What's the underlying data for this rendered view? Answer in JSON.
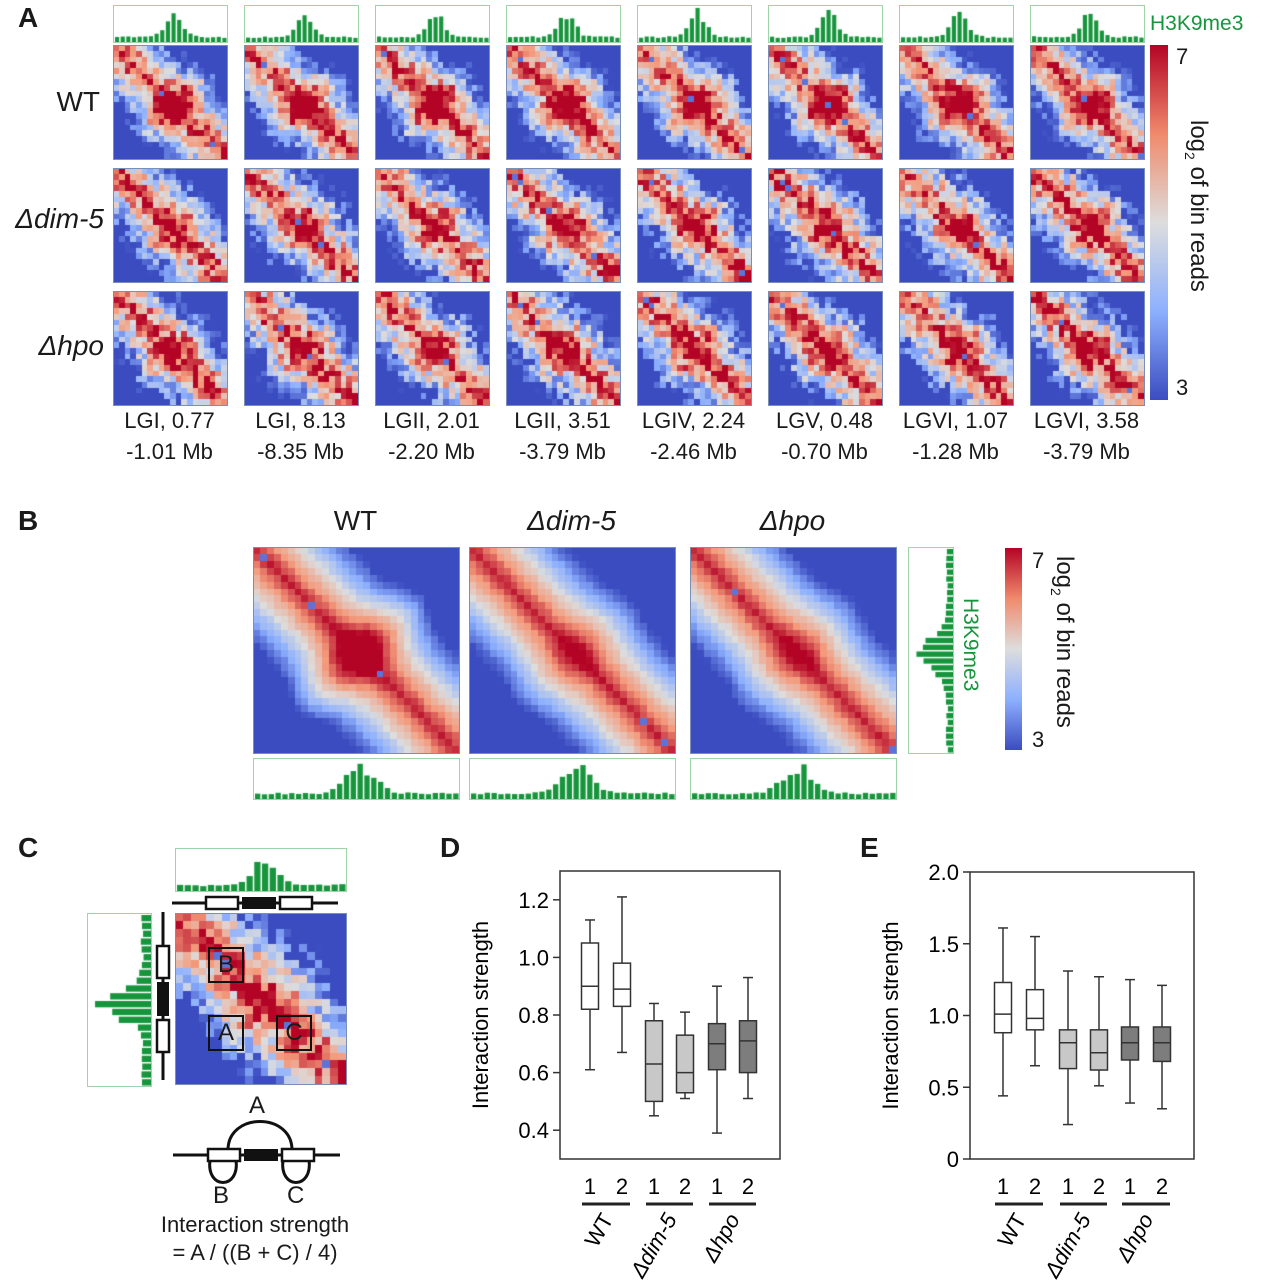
{
  "panel_labels": [
    "A",
    "B",
    "C",
    "D",
    "E"
  ],
  "panelA": {
    "rows": [
      "WT",
      "Δdim-5",
      "Δhpo"
    ],
    "columns": [
      {
        "line1": "LGI, 0.77",
        "line2": "-1.01 Mb"
      },
      {
        "line1": "LGI, 8.13",
        "line2": "-8.35 Mb"
      },
      {
        "line1": "LGII, 2.01",
        "line2": "-2.20 Mb"
      },
      {
        "line1": "LGII, 3.51",
        "line2": "-3.79 Mb"
      },
      {
        "line1": "LGIV, 2.24",
        "line2": "-2.46 Mb"
      },
      {
        "line1": "LGV, 0.48",
        "line2": "-0.70 Mb"
      },
      {
        "line1": "LGVI, 1.07",
        "line2": "-1.28 Mb"
      },
      {
        "line1": "LGVI, 3.58",
        "line2": "-3.79 Mb"
      }
    ],
    "track_label": "H3K9me3",
    "colorbar": {
      "max": "7",
      "min": "3",
      "label_log": "log",
      "label_sub": "2",
      "label_rest": " of bin reads"
    }
  },
  "panelB": {
    "titles": [
      "WT",
      "Δdim-5",
      "Δhpo"
    ],
    "track_label": "H3K9me3",
    "colorbar": {
      "max": "7",
      "min": "3",
      "label_log": "log",
      "label_sub": "2",
      "label_rest": " of bin reads"
    }
  },
  "panelC": {
    "boxes": [
      "B",
      "A",
      "C"
    ],
    "arc_labels": {
      "a": "A",
      "b": "B",
      "c": "C"
    },
    "formula_line1": "Interaction strength",
    "formula_line2": "= A / ((B + C) / 4)"
  },
  "colors": {
    "track": "#17953c",
    "heat_low": "#3b4cc0",
    "heat_mid": "#dddddd",
    "heat_high": "#b40426",
    "wt_box": "#ffffff",
    "dim5_box": "#c8c8c8",
    "hpo_box": "#7d7d7d"
  },
  "chart_data": [
    {
      "type": "box",
      "panel": "D",
      "ylabel": "Interaction strength",
      "ylim": [
        0.3,
        1.3
      ],
      "yticks": [
        0.4,
        0.6,
        0.8,
        1.0,
        1.2
      ],
      "ytick_labels": [
        "0.4",
        "0.6",
        "0.8",
        "1.0",
        "1.2"
      ],
      "categories": [
        "1",
        "2",
        "1",
        "2",
        "1",
        "2"
      ],
      "groups": [
        "WT",
        "Δdim-5",
        "Δhpo"
      ],
      "series": [
        {
          "group": "WT",
          "replicate": "1",
          "min": 0.61,
          "q1": 0.82,
          "median": 0.9,
          "q3": 1.05,
          "max": 1.13
        },
        {
          "group": "WT",
          "replicate": "2",
          "min": 0.67,
          "q1": 0.83,
          "median": 0.89,
          "q3": 0.98,
          "max": 1.21
        },
        {
          "group": "Δdim-5",
          "replicate": "1",
          "min": 0.45,
          "q1": 0.5,
          "median": 0.63,
          "q3": 0.78,
          "max": 0.84
        },
        {
          "group": "Δdim-5",
          "replicate": "2",
          "min": 0.51,
          "q1": 0.53,
          "median": 0.6,
          "q3": 0.73,
          "max": 0.81
        },
        {
          "group": "Δhpo",
          "replicate": "1",
          "min": 0.39,
          "q1": 0.61,
          "median": 0.7,
          "q3": 0.77,
          "max": 0.9
        },
        {
          "group": "Δhpo",
          "replicate": "2",
          "min": 0.51,
          "q1": 0.6,
          "median": 0.71,
          "q3": 0.78,
          "max": 0.93
        }
      ]
    },
    {
      "type": "box",
      "panel": "E",
      "ylabel": "Interaction strength",
      "ylim": [
        0,
        2.0
      ],
      "yticks": [
        0,
        0.5,
        1.0,
        1.5,
        2.0
      ],
      "ytick_labels": [
        "0",
        "0.5",
        "1.0",
        "1.5",
        "2.0"
      ],
      "categories": [
        "1",
        "2",
        "1",
        "2",
        "1",
        "2"
      ],
      "groups": [
        "WT",
        "Δdim-5",
        "Δhpo"
      ],
      "series": [
        {
          "group": "WT",
          "replicate": "1",
          "min": 0.44,
          "q1": 0.88,
          "median": 1.01,
          "q3": 1.23,
          "max": 1.61
        },
        {
          "group": "WT",
          "replicate": "2",
          "min": 0.65,
          "q1": 0.9,
          "median": 0.98,
          "q3": 1.18,
          "max": 1.55
        },
        {
          "group": "Δdim-5",
          "replicate": "1",
          "min": 0.24,
          "q1": 0.63,
          "median": 0.81,
          "q3": 0.9,
          "max": 1.31
        },
        {
          "group": "Δdim-5",
          "replicate": "2",
          "min": 0.51,
          "q1": 0.62,
          "median": 0.74,
          "q3": 0.9,
          "max": 1.27
        },
        {
          "group": "Δhpo",
          "replicate": "1",
          "min": 0.39,
          "q1": 0.69,
          "median": 0.81,
          "q3": 0.92,
          "max": 1.25
        },
        {
          "group": "Δhpo",
          "replicate": "2",
          "min": 0.35,
          "q1": 0.68,
          "median": 0.81,
          "q3": 0.92,
          "max": 1.21
        }
      ]
    }
  ]
}
